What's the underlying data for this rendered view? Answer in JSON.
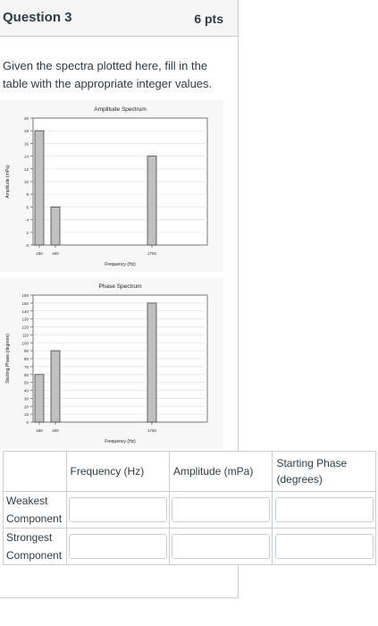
{
  "question": {
    "title": "Question 3",
    "points": "6 pts",
    "text": "Given the spectra plotted here, fill in the table with the appropriate integer values."
  },
  "chart_data": [
    {
      "type": "bar",
      "title": "Amplitude Spectrum",
      "xlabel": "Frequency (Hz)",
      "ylabel": "Amplitude (mPa)",
      "x": [
        180,
        400,
        1750
      ],
      "values": [
        18,
        6,
        14
      ],
      "x_tick_labels": [
        "180",
        "400",
        "1750"
      ],
      "ylim": [
        0,
        20
      ],
      "y_ticks": [
        0,
        2,
        4,
        6,
        8,
        10,
        12,
        14,
        16,
        18,
        20
      ],
      "bar_color": "#c0c0c0",
      "grid": true
    },
    {
      "type": "bar",
      "title": "Phase Spectrum",
      "xlabel": "Frequency (Hz)",
      "ylabel": "Starting Phase (degrees)",
      "x": [
        180,
        400,
        1750
      ],
      "values": [
        60,
        90,
        150
      ],
      "x_tick_labels": [
        "180",
        "400",
        "1750"
      ],
      "ylim": [
        0,
        160
      ],
      "y_ticks": [
        0,
        10,
        20,
        30,
        40,
        50,
        60,
        70,
        80,
        90,
        100,
        110,
        120,
        130,
        140,
        150,
        160
      ],
      "bar_color": "#c0c0c0",
      "grid": true
    }
  ],
  "table": {
    "headers": [
      "",
      "Frequency (Hz)",
      "Amplitude (mPa)",
      "Starting Phase (degrees)"
    ],
    "rows": [
      {
        "label": "Weakest Component",
        "values": [
          "",
          "",
          ""
        ]
      },
      {
        "label": "Strongest Component",
        "values": [
          "",
          "",
          ""
        ]
      }
    ]
  }
}
